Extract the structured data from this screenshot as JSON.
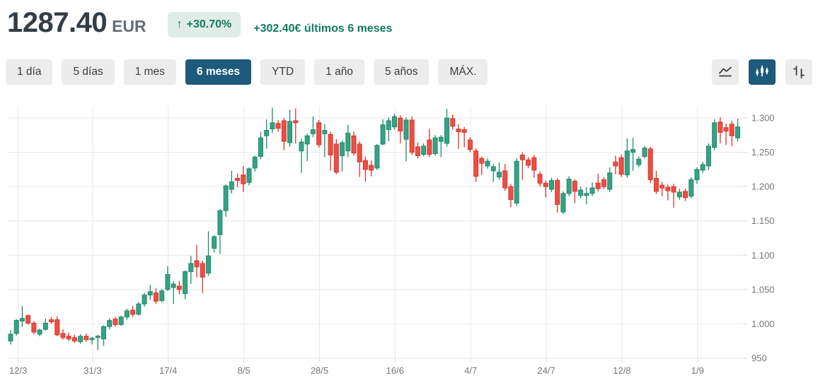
{
  "header": {
    "price": "1287.40",
    "currency": "EUR",
    "change_percent": "+30.70%",
    "up_arrow": "↑",
    "change_text": "+302.40€ últimos 6 meses",
    "accent_green": "#147a63",
    "badge_bg": "#e0ece6"
  },
  "toolbar": {
    "ranges": [
      {
        "label": "1 día",
        "selected": false
      },
      {
        "label": "5 días",
        "selected": false
      },
      {
        "label": "1 mes",
        "selected": false
      },
      {
        "label": "6 meses",
        "selected": true
      },
      {
        "label": "YTD",
        "selected": false
      },
      {
        "label": "1 año",
        "selected": false
      },
      {
        "label": "5 años",
        "selected": false
      },
      {
        "label": "MÁX.",
        "selected": false
      }
    ],
    "chart_types": [
      {
        "name": "line-chart",
        "selected": false
      },
      {
        "name": "candlestick-chart",
        "selected": true
      },
      {
        "name": "ohlc-chart",
        "selected": false
      }
    ],
    "selected_bg": "#1e5a7b"
  },
  "chart_data": {
    "type": "candlestick",
    "title": "",
    "xlabel": "",
    "ylabel": "",
    "grid": true,
    "legend": false,
    "y_axis_side": "right",
    "y_range": [
      950,
      1315
    ],
    "y_ticks": {
      "labels": [
        "1.300",
        "1.250",
        "1.200",
        "1.150",
        "1.100",
        "1.050",
        "1.000",
        "950"
      ],
      "values": [
        1300,
        1250,
        1200,
        1150,
        1100,
        1050,
        1000,
        950
      ]
    },
    "x_ticks": {
      "labels": [
        "12/3",
        "31/3",
        "17/4",
        "8/5",
        "28/5",
        "16/6",
        "4/7",
        "24/7",
        "12/8",
        "1/9"
      ],
      "indices": [
        1.3,
        14.1,
        27.1,
        40.1,
        53.1,
        66.1,
        79.1,
        92.1,
        105.1,
        118.1
      ]
    },
    "colors": {
      "up": "#35a285",
      "up_stroke": "#23896d",
      "down": "#eb4f45",
      "down_stroke": "#d8362d",
      "grid": "#e9e9e9",
      "axis": "#d6d6d6"
    },
    "candles_ohlc": [
      [
        975,
        991,
        970,
        985
      ],
      [
        986,
        1007,
        983,
        1005
      ],
      [
        1004,
        1026,
        996,
        1008
      ],
      [
        1012,
        1014,
        999,
        1001
      ],
      [
        1001,
        1004,
        985,
        988
      ],
      [
        985,
        993,
        982,
        991
      ],
      [
        992,
        1008,
        990,
        1001
      ],
      [
        1006,
        1010,
        1000,
        1003
      ],
      [
        1006,
        1011,
        982,
        984
      ],
      [
        986,
        992,
        977,
        980
      ],
      [
        982,
        987,
        975,
        978
      ],
      [
        980,
        984,
        972,
        975
      ],
      [
        974,
        985,
        971,
        982
      ],
      [
        982,
        986,
        974,
        977
      ],
      [
        977,
        981,
        970,
        979
      ],
      [
        980,
        984,
        962,
        982
      ],
      [
        978,
        998,
        968,
        996
      ],
      [
        996,
        1008,
        992,
        1005
      ],
      [
        1007,
        1010,
        996,
        999
      ],
      [
        999,
        1012,
        997,
        1010
      ],
      [
        1010,
        1022,
        1006,
        1019
      ],
      [
        1020,
        1026,
        1010,
        1014
      ],
      [
        1014,
        1032,
        1012,
        1029
      ],
      [
        1029,
        1045,
        1025,
        1042
      ],
      [
        1042,
        1057,
        1035,
        1047
      ],
      [
        1045,
        1052,
        1029,
        1033
      ],
      [
        1034,
        1051,
        1031,
        1048
      ],
      [
        1050,
        1084,
        1048,
        1072
      ],
      [
        1053,
        1062,
        1029,
        1058
      ],
      [
        1055,
        1062,
        1043,
        1050
      ],
      [
        1044,
        1078,
        1036,
        1076
      ],
      [
        1076,
        1099,
        1058,
        1088
      ],
      [
        1092,
        1115,
        1068,
        1083
      ],
      [
        1088,
        1092,
        1045,
        1068
      ],
      [
        1074,
        1135,
        1070,
        1099
      ],
      [
        1110,
        1129,
        1104,
        1127
      ],
      [
        1130,
        1167,
        1102,
        1165
      ],
      [
        1165,
        1203,
        1156,
        1201
      ],
      [
        1196,
        1223,
        1190,
        1207
      ],
      [
        1212,
        1219,
        1199,
        1209
      ],
      [
        1217,
        1230,
        1192,
        1204
      ],
      [
        1206,
        1228,
        1202,
        1226
      ],
      [
        1227,
        1245,
        1222,
        1243
      ],
      [
        1244,
        1280,
        1240,
        1271
      ],
      [
        1274,
        1298,
        1255,
        1282
      ],
      [
        1284,
        1315,
        1278,
        1293
      ],
      [
        1292,
        1297,
        1280,
        1285
      ],
      [
        1296,
        1300,
        1253,
        1266
      ],
      [
        1264,
        1312,
        1258,
        1295
      ],
      [
        1296,
        1314,
        1263,
        1293
      ],
      [
        1252,
        1270,
        1220,
        1265
      ],
      [
        1262,
        1277,
        1237,
        1274
      ],
      [
        1277,
        1302,
        1272,
        1283
      ],
      [
        1293,
        1297,
        1257,
        1261
      ],
      [
        1277,
        1291,
        1243,
        1282
      ],
      [
        1276,
        1280,
        1223,
        1246
      ],
      [
        1262,
        1269,
        1218,
        1221
      ],
      [
        1245,
        1267,
        1222,
        1264
      ],
      [
        1252,
        1290,
        1243,
        1278
      ],
      [
        1274,
        1280,
        1245,
        1249
      ],
      [
        1262,
        1266,
        1214,
        1236
      ],
      [
        1238,
        1244,
        1207,
        1225
      ],
      [
        1231,
        1238,
        1215,
        1224
      ],
      [
        1227,
        1262,
        1224,
        1260
      ],
      [
        1262,
        1298,
        1260,
        1290
      ],
      [
        1283,
        1301,
        1266,
        1296
      ],
      [
        1287,
        1306,
        1283,
        1302
      ],
      [
        1300,
        1304,
        1263,
        1281
      ],
      [
        1269,
        1301,
        1237,
        1297
      ],
      [
        1297,
        1302,
        1246,
        1250
      ],
      [
        1258,
        1264,
        1241,
        1245
      ],
      [
        1247,
        1263,
        1244,
        1259
      ],
      [
        1268,
        1284,
        1243,
        1247
      ],
      [
        1248,
        1275,
        1245,
        1271
      ],
      [
        1266,
        1275,
        1243,
        1272
      ],
      [
        1263,
        1313,
        1258,
        1300
      ],
      [
        1299,
        1305,
        1283,
        1288
      ],
      [
        1284,
        1291,
        1255,
        1280
      ],
      [
        1283,
        1287,
        1257,
        1279
      ],
      [
        1268,
        1272,
        1250,
        1254
      ],
      [
        1252,
        1256,
        1207,
        1215
      ],
      [
        1241,
        1244,
        1217,
        1234
      ],
      [
        1230,
        1241,
        1226,
        1237
      ],
      [
        1223,
        1233,
        1207,
        1229
      ],
      [
        1214,
        1235,
        1210,
        1221
      ],
      [
        1223,
        1233,
        1194,
        1198
      ],
      [
        1200,
        1204,
        1170,
        1181
      ],
      [
        1176,
        1241,
        1172,
        1237
      ],
      [
        1246,
        1250,
        1210,
        1239
      ],
      [
        1239,
        1243,
        1227,
        1231
      ],
      [
        1242,
        1246,
        1213,
        1224
      ],
      [
        1218,
        1222,
        1200,
        1205
      ],
      [
        1205,
        1209,
        1184,
        1200
      ],
      [
        1196,
        1213,
        1192,
        1209
      ],
      [
        1209,
        1212,
        1162,
        1174
      ],
      [
        1163,
        1193,
        1160,
        1190
      ],
      [
        1190,
        1215,
        1186,
        1211
      ],
      [
        1208,
        1211,
        1176,
        1193
      ],
      [
        1187,
        1200,
        1183,
        1195
      ],
      [
        1187,
        1199,
        1174,
        1190
      ],
      [
        1190,
        1206,
        1186,
        1198
      ],
      [
        1205,
        1219,
        1193,
        1197
      ],
      [
        1210,
        1214,
        1196,
        1200
      ],
      [
        1196,
        1228,
        1192,
        1220
      ],
      [
        1236,
        1245,
        1218,
        1230
      ],
      [
        1242,
        1247,
        1214,
        1218
      ],
      [
        1217,
        1270,
        1213,
        1252
      ],
      [
        1250,
        1271,
        1223,
        1254
      ],
      [
        1232,
        1244,
        1228,
        1240
      ],
      [
        1244,
        1259,
        1241,
        1256
      ],
      [
        1255,
        1258,
        1205,
        1210
      ],
      [
        1212,
        1223,
        1189,
        1193
      ],
      [
        1202,
        1207,
        1186,
        1198
      ],
      [
        1199,
        1203,
        1180,
        1194
      ],
      [
        1200,
        1204,
        1169,
        1192
      ],
      [
        1185,
        1197,
        1181,
        1192
      ],
      [
        1193,
        1197,
        1179,
        1184
      ],
      [
        1186,
        1214,
        1183,
        1210
      ],
      [
        1210,
        1228,
        1204,
        1225
      ],
      [
        1224,
        1236,
        1220,
        1232
      ],
      [
        1230,
        1263,
        1224,
        1259
      ],
      [
        1257,
        1298,
        1253,
        1293
      ],
      [
        1294,
        1301,
        1263,
        1279
      ],
      [
        1286,
        1292,
        1261,
        1281
      ],
      [
        1291,
        1296,
        1259,
        1274
      ],
      [
        1271,
        1299,
        1266,
        1287
      ]
    ]
  }
}
